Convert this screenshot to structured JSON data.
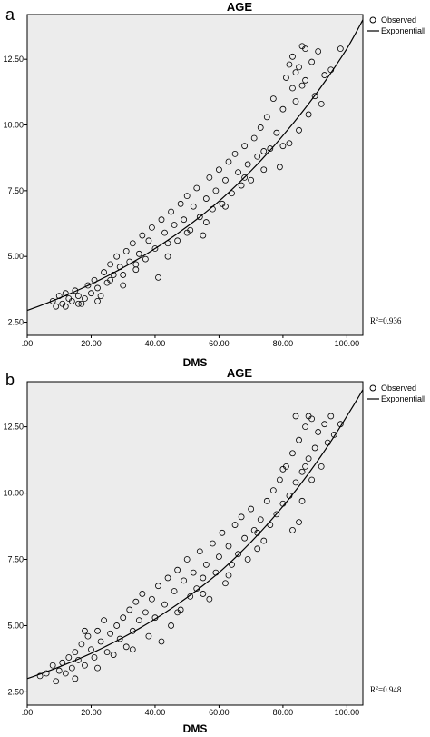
{
  "chart_data": [
    {
      "type": "scatter",
      "panel_label": "a",
      "title": "AGE",
      "xlabel": "DMS",
      "ylabel": "",
      "xlim": [
        0,
        105
      ],
      "ylim": [
        2.0,
        14.2
      ],
      "xticks": [
        ".00",
        "20.00",
        "40.00",
        "60.00",
        "80.00",
        "100.00"
      ],
      "yticks": [
        "2.50",
        "5.00",
        "7.50",
        "10.00",
        "12.50"
      ],
      "legend": {
        "position": "top-right",
        "entries": [
          "Observed",
          "Exponentiall"
        ]
      },
      "annotation_prefix": "R",
      "annotation": "=0.936",
      "fit": {
        "type": "exponential",
        "points": [
          [
            0,
            2.95
          ],
          [
            20,
            3.95
          ],
          [
            40,
            5.3
          ],
          [
            60,
            7.1
          ],
          [
            80,
            9.6
          ],
          [
            100,
            12.9
          ],
          [
            105,
            14.0
          ]
        ]
      },
      "series": [
        {
          "values": [
            [
              8,
              3.3
            ],
            [
              9,
              3.1
            ],
            [
              10,
              3.5
            ],
            [
              11,
              3.2
            ],
            [
              12,
              3.6
            ],
            [
              13,
              3.4
            ],
            [
              14,
              3.3
            ],
            [
              15,
              3.7
            ],
            [
              16,
              3.5
            ],
            [
              17,
              3.2
            ],
            [
              18,
              3.4
            ],
            [
              19,
              3.9
            ],
            [
              20,
              3.6
            ],
            [
              21,
              4.1
            ],
            [
              22,
              3.8
            ],
            [
              23,
              3.5
            ],
            [
              24,
              4.4
            ],
            [
              25,
              4.0
            ],
            [
              26,
              4.7
            ],
            [
              27,
              4.3
            ],
            [
              28,
              5.0
            ],
            [
              29,
              4.6
            ],
            [
              30,
              4.3
            ],
            [
              31,
              5.2
            ],
            [
              32,
              4.8
            ],
            [
              33,
              5.5
            ],
            [
              34,
              4.5
            ],
            [
              35,
              5.1
            ],
            [
              36,
              5.8
            ],
            [
              37,
              4.9
            ],
            [
              38,
              5.6
            ],
            [
              39,
              6.1
            ],
            [
              40,
              5.3
            ],
            [
              41,
              4.2
            ],
            [
              42,
              6.4
            ],
            [
              43,
              5.9
            ],
            [
              44,
              5.0
            ],
            [
              45,
              6.7
            ],
            [
              46,
              6.2
            ],
            [
              47,
              5.6
            ],
            [
              48,
              7.0
            ],
            [
              49,
              6.4
            ],
            [
              50,
              7.3
            ],
            [
              51,
              6.0
            ],
            [
              52,
              6.9
            ],
            [
              53,
              7.6
            ],
            [
              54,
              6.5
            ],
            [
              55,
              5.8
            ],
            [
              56,
              7.2
            ],
            [
              57,
              8.0
            ],
            [
              58,
              6.8
            ],
            [
              59,
              7.5
            ],
            [
              60,
              8.3
            ],
            [
              61,
              7.0
            ],
            [
              62,
              7.9
            ],
            [
              63,
              8.6
            ],
            [
              64,
              7.4
            ],
            [
              65,
              8.9
            ],
            [
              66,
              8.2
            ],
            [
              67,
              7.7
            ],
            [
              68,
              9.2
            ],
            [
              69,
              8.5
            ],
            [
              70,
              7.9
            ],
            [
              71,
              9.5
            ],
            [
              72,
              8.8
            ],
            [
              73,
              9.9
            ],
            [
              74,
              8.3
            ],
            [
              75,
              10.3
            ],
            [
              76,
              9.1
            ],
            [
              77,
              11.0
            ],
            [
              78,
              9.7
            ],
            [
              79,
              8.4
            ],
            [
              80,
              10.6
            ],
            [
              81,
              11.8
            ],
            [
              82,
              9.3
            ],
            [
              83,
              12.6
            ],
            [
              84,
              10.9
            ],
            [
              85,
              12.2
            ],
            [
              86,
              11.5
            ],
            [
              87,
              12.9
            ],
            [
              88,
              10.4
            ],
            [
              89,
              12.4
            ],
            [
              90,
              11.1
            ],
            [
              91,
              12.8
            ],
            [
              92,
              10.8
            ],
            [
              93,
              11.9
            ],
            [
              95,
              12.1
            ],
            [
              98,
              12.9
            ],
            [
              85,
              9.8
            ],
            [
              84,
              12.0
            ],
            [
              86,
              13.0
            ],
            [
              83,
              11.4
            ],
            [
              87,
              11.7
            ],
            [
              12,
              3.1
            ],
            [
              16,
              3.2
            ],
            [
              22,
              3.3
            ],
            [
              26,
              4.1
            ],
            [
              30,
              3.9
            ],
            [
              34,
              4.7
            ],
            [
              44,
              5.5
            ],
            [
              50,
              5.9
            ],
            [
              56,
              6.3
            ],
            [
              62,
              6.9
            ],
            [
              68,
              8.0
            ],
            [
              74,
              9.0
            ],
            [
              80,
              9.2
            ],
            [
              82,
              12.3
            ]
          ]
        }
      ]
    },
    {
      "type": "scatter",
      "panel_label": "b",
      "title": "AGE",
      "xlabel": "DMS",
      "ylabel": "",
      "xlim": [
        0,
        105
      ],
      "ylim": [
        2.0,
        14.2
      ],
      "xticks": [
        ".00",
        "20.00",
        "40.00",
        "60.00",
        "80.00",
        "100.00"
      ],
      "yticks": [
        "2.50",
        "5.00",
        "7.50",
        "10.00",
        "12.50"
      ],
      "legend": {
        "position": "top-right",
        "entries": [
          "Observed",
          "Exponentiall"
        ]
      },
      "annotation_prefix": "R",
      "annotation": "=0.948",
      "fit": {
        "type": "exponential",
        "points": [
          [
            0,
            3.0
          ],
          [
            20,
            3.95
          ],
          [
            40,
            5.25
          ],
          [
            60,
            7.0
          ],
          [
            80,
            9.5
          ],
          [
            100,
            12.9
          ],
          [
            105,
            13.9
          ]
        ]
      },
      "series": [
        {
          "values": [
            [
              4,
              3.1
            ],
            [
              6,
              3.2
            ],
            [
              8,
              3.5
            ],
            [
              9,
              2.9
            ],
            [
              10,
              3.3
            ],
            [
              11,
              3.6
            ],
            [
              12,
              3.2
            ],
            [
              13,
              3.8
            ],
            [
              14,
              3.4
            ],
            [
              15,
              4.0
            ],
            [
              16,
              3.7
            ],
            [
              17,
              4.3
            ],
            [
              18,
              3.5
            ],
            [
              19,
              4.6
            ],
            [
              20,
              4.1
            ],
            [
              21,
              3.8
            ],
            [
              22,
              4.8
            ],
            [
              23,
              4.4
            ],
            [
              24,
              5.2
            ],
            [
              25,
              4.0
            ],
            [
              26,
              4.7
            ],
            [
              27,
              3.9
            ],
            [
              28,
              5.0
            ],
            [
              29,
              4.5
            ],
            [
              30,
              5.3
            ],
            [
              31,
              4.2
            ],
            [
              32,
              5.6
            ],
            [
              33,
              4.8
            ],
            [
              34,
              5.9
            ],
            [
              35,
              5.2
            ],
            [
              36,
              6.2
            ],
            [
              37,
              5.5
            ],
            [
              38,
              4.6
            ],
            [
              39,
              6.0
            ],
            [
              40,
              5.3
            ],
            [
              41,
              6.5
            ],
            [
              42,
              4.4
            ],
            [
              43,
              5.8
            ],
            [
              44,
              6.8
            ],
            [
              45,
              5.0
            ],
            [
              46,
              6.3
            ],
            [
              47,
              7.1
            ],
            [
              48,
              5.6
            ],
            [
              49,
              6.7
            ],
            [
              50,
              7.5
            ],
            [
              51,
              6.1
            ],
            [
              52,
              7.0
            ],
            [
              53,
              6.4
            ],
            [
              54,
              7.8
            ],
            [
              55,
              6.8
            ],
            [
              56,
              7.3
            ],
            [
              57,
              6.0
            ],
            [
              58,
              8.1
            ],
            [
              59,
              7.0
            ],
            [
              60,
              7.6
            ],
            [
              61,
              8.5
            ],
            [
              62,
              6.6
            ],
            [
              63,
              8.0
            ],
            [
              64,
              7.3
            ],
            [
              65,
              8.8
            ],
            [
              66,
              7.7
            ],
            [
              67,
              9.1
            ],
            [
              68,
              8.3
            ],
            [
              69,
              7.5
            ],
            [
              70,
              9.4
            ],
            [
              71,
              8.6
            ],
            [
              72,
              7.9
            ],
            [
              73,
              9.0
            ],
            [
              74,
              8.2
            ],
            [
              75,
              9.7
            ],
            [
              76,
              8.8
            ],
            [
              77,
              10.1
            ],
            [
              78,
              9.2
            ],
            [
              79,
              10.5
            ],
            [
              80,
              9.6
            ],
            [
              81,
              11.0
            ],
            [
              82,
              9.9
            ],
            [
              83,
              11.5
            ],
            [
              84,
              10.4
            ],
            [
              85,
              12.0
            ],
            [
              86,
              10.8
            ],
            [
              87,
              12.5
            ],
            [
              88,
              11.3
            ],
            [
              89,
              12.8
            ],
            [
              90,
              11.7
            ],
            [
              91,
              12.3
            ],
            [
              92,
              11.0
            ],
            [
              93,
              12.6
            ],
            [
              94,
              11.9
            ],
            [
              95,
              12.9
            ],
            [
              96,
              12.2
            ],
            [
              98,
              12.6
            ],
            [
              86,
              9.7
            ],
            [
              84,
              12.9
            ],
            [
              85,
              8.9
            ],
            [
              87,
              11.0
            ],
            [
              88,
              12.9
            ],
            [
              89,
              10.5
            ],
            [
              15,
              3.0
            ],
            [
              22,
              3.4
            ],
            [
              33,
              4.1
            ],
            [
              47,
              5.5
            ],
            [
              55,
              6.2
            ],
            [
              63,
              6.9
            ],
            [
              72,
              8.5
            ],
            [
              80,
              10.9
            ],
            [
              83,
              8.6
            ],
            [
              18,
              4.8
            ]
          ]
        }
      ]
    }
  ]
}
